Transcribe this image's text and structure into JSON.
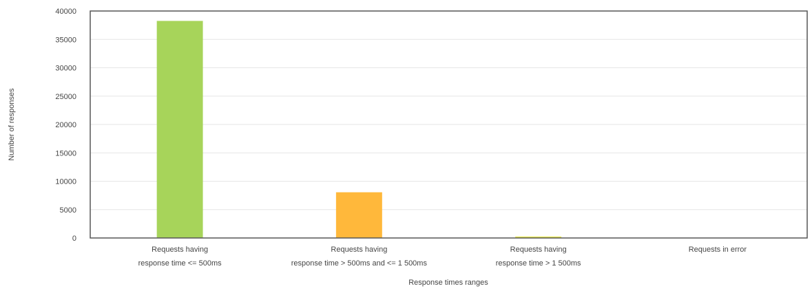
{
  "chart_data": {
    "type": "bar",
    "title": "",
    "xlabel": "Response times ranges",
    "ylabel": "Number of responses",
    "ylim": [
      0,
      40000
    ],
    "yticks": [
      0,
      5000,
      10000,
      15000,
      20000,
      25000,
      30000,
      35000,
      40000
    ],
    "ytick_labels": [
      "0",
      "5000",
      "10000",
      "15000",
      "20000",
      "25000",
      "30000",
      "35000",
      "40000"
    ],
    "grid": true,
    "legend": "none",
    "categories": [
      {
        "lines": [
          "Requests having",
          "response time <= 500ms"
        ]
      },
      {
        "lines": [
          "Requests having",
          "response time > 500ms and <= 1 500ms"
        ]
      },
      {
        "lines": [
          "Requests having",
          "response time > 1 500ms"
        ]
      },
      {
        "lines": [
          "Requests in error"
        ]
      }
    ],
    "values": [
      38200,
      8000,
      200,
      0
    ],
    "colors": [
      "#a7d45a",
      "#ffb83b",
      "#e8e84a",
      "#ff6b6b"
    ]
  }
}
